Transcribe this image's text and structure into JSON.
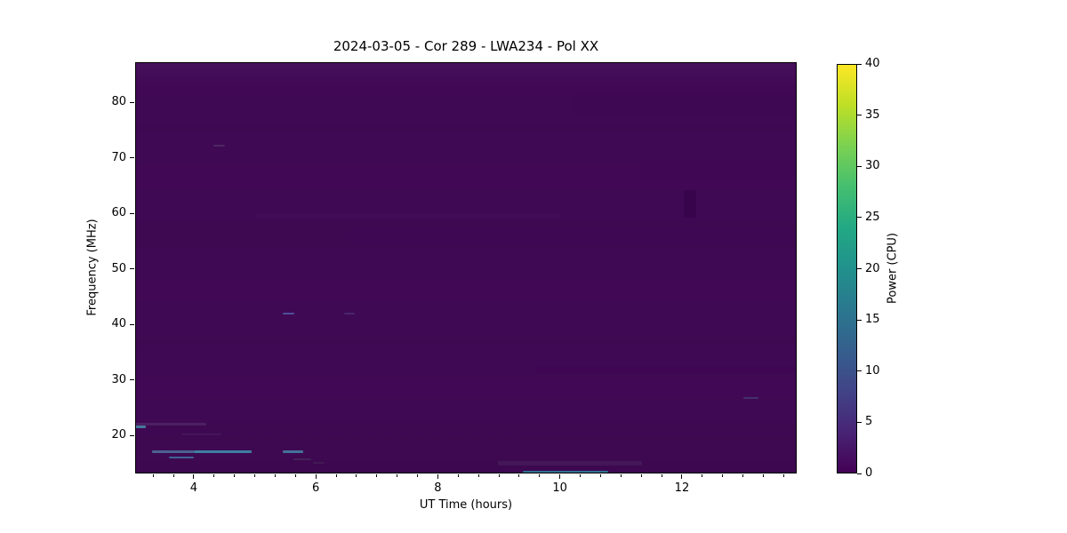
{
  "window": {
    "background_color": "#ffffff"
  },
  "chart_data": {
    "type": "heatmap",
    "title": "2024-03-05 - Cor 289 - LWA234 - Pol XX",
    "xlabel": "UT Time (hours)",
    "ylabel": "Frequency (MHz)",
    "colorbar_label": "Power (CPU)",
    "colormap": "viridis",
    "grid": false,
    "xlim": [
      3.04,
      13.88
    ],
    "ylim": [
      13.2,
      87.2
    ],
    "clim": [
      0,
      40
    ],
    "xticks": [
      4,
      6,
      8,
      10,
      12
    ],
    "xtick_minor_interval_hours": 0.3333,
    "yticks": [
      20,
      30,
      40,
      50,
      60,
      70,
      80
    ],
    "colorbar_ticks": [
      0,
      5,
      10,
      15,
      20,
      25,
      30,
      35,
      40
    ],
    "background_power_cpu": 1,
    "background_color": "#410955",
    "viridis_stops": [
      "#440154",
      "#482475",
      "#414487",
      "#355f8d",
      "#2a788e",
      "#21918c",
      "#22a884",
      "#44bf70",
      "#7ad151",
      "#bddf26",
      "#fde725"
    ],
    "features": [
      {
        "name": "rfi-streak-21.5MHz",
        "t0": 3.04,
        "t1": 3.21,
        "f0": 21.3,
        "f1": 21.8,
        "power": 12,
        "color": "#46789f",
        "opacity": 1
      },
      {
        "name": "faint-streak-22MHz",
        "t0": 3.04,
        "t1": 4.21,
        "f0": 21.8,
        "f1": 22.25,
        "power": 3,
        "color": "#55356f",
        "opacity": 0.55
      },
      {
        "name": "rfi-line-17MHz-a",
        "t0": 3.32,
        "t1": 4.0,
        "f0": 16.8,
        "f1": 17.3,
        "power": 7,
        "color": "#4a6292",
        "opacity": 1
      },
      {
        "name": "rfi-line-17MHz-b",
        "t0": 4.0,
        "t1": 4.95,
        "f0": 16.8,
        "f1": 17.3,
        "power": 10,
        "color": "#3f7da1",
        "opacity": 1
      },
      {
        "name": "rfi-line-17MHz-c",
        "t0": 5.46,
        "t1": 5.79,
        "f0": 16.8,
        "f1": 17.3,
        "power": 8,
        "color": "#44719a",
        "opacity": 1
      },
      {
        "name": "rfi-line-16MHz",
        "t0": 3.59,
        "t1": 4.0,
        "f0": 15.9,
        "f1": 16.3,
        "power": 7,
        "color": "#3f6396",
        "opacity": 1
      },
      {
        "name": "rfi-dash-42MHz-a",
        "t0": 5.46,
        "t1": 5.65,
        "f0": 41.8,
        "f1": 42.2,
        "power": 5,
        "color": "#4e4e99",
        "opacity": 1
      },
      {
        "name": "rfi-dash-42MHz-b",
        "t0": 6.46,
        "t1": 6.64,
        "f0": 41.8,
        "f1": 42.2,
        "power": 3,
        "color": "#4a2f73",
        "opacity": 0.8
      },
      {
        "name": "rfi-dash-72MHz",
        "t0": 4.32,
        "t1": 4.51,
        "f0": 72.0,
        "f1": 72.35,
        "power": 2.5,
        "color": "#513068",
        "opacity": 0.8
      },
      {
        "name": "rfi-line-13.5MHz",
        "t0": 9.39,
        "t1": 10.79,
        "f0": 13.3,
        "f1": 13.7,
        "power": 9,
        "color": "#30708e",
        "opacity": 1
      },
      {
        "name": "smudge-15MHz",
        "t0": 8.98,
        "t1": 11.34,
        "f0": 14.7,
        "f1": 15.4,
        "power": 2,
        "color": "#49255f",
        "opacity": 0.5
      },
      {
        "name": "dark-patch-62MHz",
        "t0": 12.03,
        "t1": 12.23,
        "f0": 59.2,
        "f1": 64.2,
        "power": 0,
        "color": "#38054d",
        "opacity": 1
      },
      {
        "name": "dark-band-79MHz",
        "t0": 10.2,
        "t1": 13.88,
        "f0": 77.5,
        "f1": 81.5,
        "power": 0.5,
        "color": "#3e0853",
        "opacity": 0.7
      },
      {
        "name": "dark-band-68MHz",
        "t0": 11.3,
        "t1": 13.88,
        "f0": 66.5,
        "f1": 69.5,
        "power": 0.5,
        "color": "#3f0954",
        "opacity": 0.6
      },
      {
        "name": "dark-band-56MHz",
        "t0": 6.5,
        "t1": 13.88,
        "f0": 54.8,
        "f1": 57.1,
        "power": 0.5,
        "color": "#3e0a52",
        "opacity": 0.5
      },
      {
        "name": "light-band-59MHz",
        "t0": 5.0,
        "t1": 10.0,
        "f0": 59.0,
        "f1": 60.0,
        "power": 1.5,
        "color": "#470f5b",
        "opacity": 0.5
      },
      {
        "name": "smudge-15.7MHz",
        "t0": 5.63,
        "t1": 5.93,
        "f0": 15.6,
        "f1": 15.9,
        "power": 3,
        "color": "#4e3c63",
        "opacity": 0.5
      },
      {
        "name": "smudge-15.0MHz",
        "t0": 5.95,
        "t1": 6.15,
        "f0": 14.9,
        "f1": 15.2,
        "power": 2.5,
        "color": "#4a3158",
        "opacity": 0.4
      },
      {
        "name": "smudge-20MHz",
        "t0": 3.8,
        "t1": 4.45,
        "f0": 20.0,
        "f1": 20.35,
        "power": 2,
        "color": "#4b2a63",
        "opacity": 0.4
      },
      {
        "name": "dash-27MHz",
        "t0": 13.0,
        "t1": 13.25,
        "f0": 26.6,
        "f1": 26.95,
        "power": 3,
        "color": "#453a75",
        "opacity": 0.8
      },
      {
        "name": "dark-band-32MHz",
        "t0": 9.6,
        "t1": 13.88,
        "f0": 31.2,
        "f1": 32.5,
        "power": 0.5,
        "color": "#3d0751",
        "opacity": 0.45
      }
    ]
  }
}
